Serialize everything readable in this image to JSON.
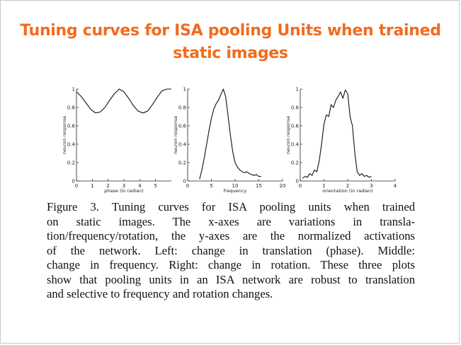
{
  "slide": {
    "title_lines": [
      "Tuning curves for ISA pooling Units when trained",
      "static images"
    ],
    "title_color": "#f26b1d"
  },
  "caption": {
    "lines": [
      "Figure 3. Tuning curves for ISA pooling units when trained",
      "on static images.    The x-axes are variations in transla-",
      "tion/frequency/rotation, the y-axes are the normalized activations",
      "of the network.  Left:  change in translation (phase).  Middle:",
      "change in frequency. Right: change in rotation. These three plots",
      "show that pooling units in an ISA network are robust to translation",
      "and selective to frequency and rotation changes."
    ]
  },
  "chart_data": [
    {
      "type": "line",
      "xlabel": "phase (in radian)",
      "ylabel": "neuron response",
      "xlim": [
        0,
        6
      ],
      "ylim": [
        0,
        1
      ],
      "xticks": [
        "0",
        "1",
        "2",
        "3",
        "4",
        "5"
      ],
      "yticks": [
        "0",
        "0.2",
        "0.4",
        "0.6",
        "0.8",
        "1"
      ],
      "x": [
        0,
        0.3,
        0.6,
        0.9,
        1.2,
        1.5,
        1.8,
        2.1,
        2.4,
        2.7,
        3.0,
        3.3,
        3.6,
        3.9,
        4.2,
        4.5,
        4.8,
        5.1,
        5.4,
        5.7,
        6.0
      ],
      "values": [
        0.97,
        0.92,
        0.85,
        0.78,
        0.74,
        0.75,
        0.8,
        0.88,
        0.95,
        1.0,
        0.97,
        0.9,
        0.82,
        0.76,
        0.74,
        0.76,
        0.83,
        0.91,
        0.98,
        1.0,
        1.0
      ]
    },
    {
      "type": "line",
      "xlabel": "frequency",
      "ylabel": "neuron response",
      "xlim": [
        0,
        20
      ],
      "ylim": [
        0,
        1
      ],
      "xticks": [
        "0",
        "5",
        "10",
        "15",
        "20"
      ],
      "yticks": [
        "0",
        "0.2",
        "0.4",
        "0.6",
        "0.8",
        "1"
      ],
      "x": [
        2.5,
        3.0,
        3.5,
        4.0,
        4.5,
        5.0,
        5.5,
        6.0,
        6.5,
        7.0,
        7.5,
        8.0,
        8.5,
        9.0,
        9.5,
        10.0,
        10.5,
        11.0,
        11.5,
        12.0,
        12.5,
        13.0,
        13.5,
        14.0,
        14.5,
        15.0,
        15.5
      ],
      "values": [
        0.02,
        0.12,
        0.25,
        0.4,
        0.55,
        0.68,
        0.78,
        0.84,
        0.88,
        0.94,
        1.0,
        0.92,
        0.72,
        0.5,
        0.32,
        0.2,
        0.15,
        0.12,
        0.1,
        0.09,
        0.1,
        0.08,
        0.07,
        0.06,
        0.07,
        0.05,
        0.05
      ]
    },
    {
      "type": "line",
      "xlabel": "orientation (in radian)",
      "ylabel": "neuron response",
      "xlim": [
        0,
        4
      ],
      "ylim": [
        0,
        1
      ],
      "xticks": [
        "0",
        "1",
        "2",
        "3",
        "4"
      ],
      "yticks": [
        "0",
        "0.2",
        "0.4",
        "0.6",
        "0.8",
        "1"
      ],
      "x": [
        0.1,
        0.2,
        0.3,
        0.4,
        0.5,
        0.6,
        0.7,
        0.8,
        0.9,
        1.0,
        1.1,
        1.2,
        1.3,
        1.4,
        1.5,
        1.6,
        1.7,
        1.8,
        1.9,
        2.0,
        2.1,
        2.2,
        2.3,
        2.4,
        2.5,
        2.6,
        2.7,
        2.8,
        2.9,
        3.0
      ],
      "values": [
        0.03,
        0.05,
        0.04,
        0.08,
        0.06,
        0.12,
        0.1,
        0.22,
        0.4,
        0.62,
        0.72,
        0.7,
        0.83,
        0.8,
        0.88,
        0.92,
        0.97,
        0.9,
        0.99,
        0.95,
        0.7,
        0.6,
        0.3,
        0.1,
        0.06,
        0.08,
        0.05,
        0.06,
        0.04,
        0.05
      ]
    }
  ]
}
